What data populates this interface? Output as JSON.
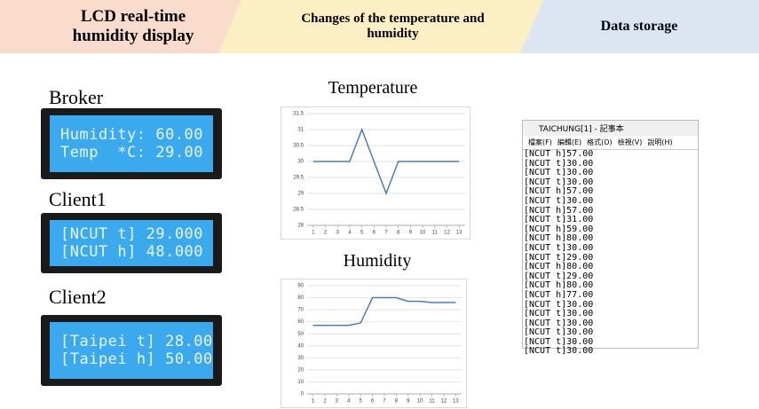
{
  "headers": [
    "LCD real-time humidity  display",
    "Changes of the temperature and humidity",
    "Data storage"
  ],
  "lcds": [
    {
      "label": "Broker",
      "lines": [
        "Humidity: 60.00",
        "Temp  *C: 29.00"
      ]
    },
    {
      "label": "Client1",
      "lines": [
        "[NCUT t] 29.000",
        "[NCUT h] 48.000"
      ]
    },
    {
      "label": "Client2",
      "lines": [
        "[Taipei t] 28.00",
        "[Taipei h] 50.00"
      ]
    }
  ],
  "chart_data": [
    {
      "type": "line",
      "title": "Temperature",
      "x": [
        1,
        2,
        3,
        4,
        5,
        6,
        7,
        8,
        9,
        10,
        11,
        12,
        13
      ],
      "xlim": [
        0.5,
        13.5
      ],
      "xticks": [
        1,
        2,
        3,
        4,
        5,
        6,
        7,
        8,
        9,
        10,
        11,
        12,
        13
      ],
      "values": [
        30,
        30,
        30,
        30,
        31,
        30,
        29,
        30,
        30,
        30,
        30,
        30,
        30
      ],
      "color": "#4a7ebb",
      "ylim": [
        28,
        31.5
      ],
      "yticks": [
        28,
        28.5,
        29,
        29.5,
        30,
        30.5,
        31,
        31.5
      ],
      "grid": true
    },
    {
      "type": "line",
      "title": "Humidity",
      "x": [
        1,
        2,
        3,
        4,
        5,
        6,
        7,
        8,
        9,
        10,
        11,
        12,
        13
      ],
      "xlim": [
        0.5,
        13.5
      ],
      "xticks": [
        1,
        2,
        3,
        4,
        5,
        6,
        7,
        8,
        9,
        10,
        11,
        12,
        13
      ],
      "values": [
        57,
        57,
        57,
        57,
        59,
        80,
        80,
        80,
        77,
        77,
        76,
        76,
        76
      ],
      "color": "#4a7ebb",
      "ylim": [
        0,
        90
      ],
      "yticks": [
        0,
        10,
        20,
        30,
        40,
        50,
        60,
        70,
        80,
        90
      ],
      "grid": true
    }
  ],
  "notepad": {
    "title": "TAICHUNG[1] - 記事本",
    "menu": [
      "檔案(F)",
      "編輯(E)",
      "格式(O)",
      "檢視(V)",
      "說明(H)"
    ],
    "lines": [
      "[NCUT h]57.00",
      "[NCUT t]30.00",
      "[NCUT t]30.00",
      "[NCUT t]30.00",
      "[NCUT h]57.00",
      "[NCUT t]30.00",
      "[NCUT h]57.00",
      "[NCUT t]31.00",
      "[NCUT h]59.00",
      "[NCUT h]80.00",
      "[NCUT t]30.00",
      "[NCUT t]29.00",
      "[NCUT h]80.00",
      "[NCUT t]29.00",
      "[NCUT h]80.00",
      "[NCUT h]77.00",
      "[NCUT t]30.00",
      "[NCUT t]30.00",
      "[NCUT t]30.00",
      "[NCUT t]30.00",
      "[NCUT t]30.00",
      "[NCUT t]30.00"
    ]
  }
}
